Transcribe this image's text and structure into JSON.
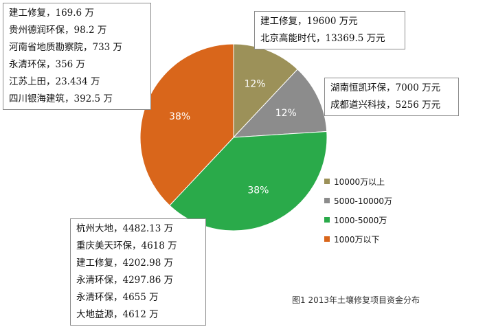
{
  "chart_data": {
    "type": "pie",
    "categories": [
      "10000万以上",
      "5000-10000万",
      "1000-5000万",
      "1000万以下"
    ],
    "values": [
      12,
      12,
      38,
      38
    ],
    "value_labels": [
      "12%",
      "12%",
      "38%",
      "38%"
    ],
    "colors": [
      "#9c9159",
      "#8c8c8c",
      "#2aaa4a",
      "#d9661b"
    ],
    "legend_position": "right",
    "caption": "图1 2013年土壤修复项目资金分布"
  },
  "notes": {
    "top_left": [
      "建工修复，169.6 万",
      "贵州德润环保，98.2 万",
      "河南省地质勘察院，733 万",
      "永清环保，356 万",
      "江苏上田，23.434 万",
      "四川银海建筑，392.5 万"
    ],
    "top_right": [
      "建工修复，19600 万元",
      "北京高能时代，13369.5 万元"
    ],
    "mid_right": [
      "湖南恒凯环保，7000 万元",
      "成都道兴科技，5256 万元"
    ],
    "bottom_left": [
      "杭州大地，4482.13 万",
      "重庆美天环保，4618 万",
      "建工修复，4202.98 万",
      "永清环保，4297.86 万",
      "永清环保，4655 万",
      "大地益源，4612 万"
    ]
  }
}
